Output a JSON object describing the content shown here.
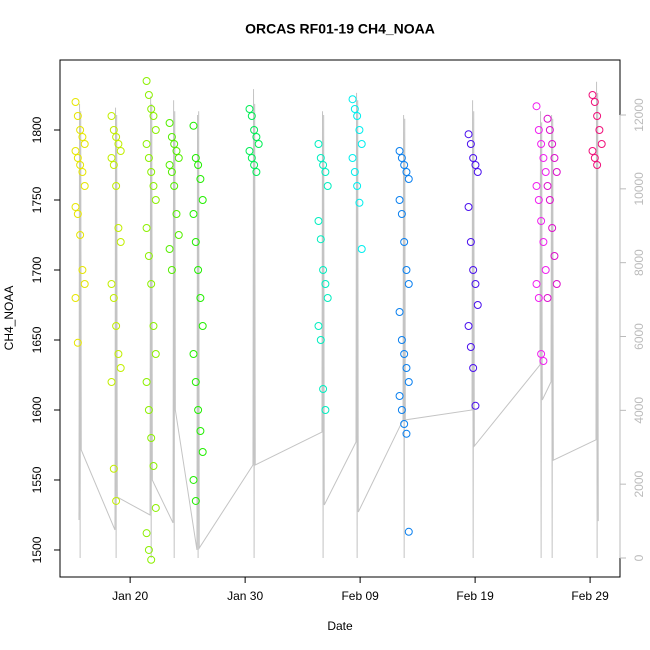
{
  "chart_data": {
    "type": "scatter",
    "title": "ORCAS RF01-19 CH4_NOAA",
    "x_label": "Date",
    "y_label": "CH4_NOAA",
    "xlim": [
      13.9,
      62.6
    ],
    "xticks": [
      {
        "value": 20,
        "label": "Jan 20"
      },
      {
        "value": 30,
        "label": "Jan 30"
      },
      {
        "value": 40,
        "label": "Feb 09"
      },
      {
        "value": 50,
        "label": "Feb 19"
      },
      {
        "value": 60,
        "label": "Feb 29"
      }
    ],
    "ylim": [
      1480.7,
      1850
    ],
    "yticks": [
      1500,
      1550,
      1600,
      1650,
      1700,
      1750,
      1800
    ],
    "y2lim": [
      -515,
      13490
    ],
    "y2ticks": [
      0,
      2000,
      4000,
      6000,
      8000,
      10000,
      12000
    ],
    "y2_color": "#bbbbbb",
    "series": [
      {
        "color": "#e6e600",
        "x": [
          15.25,
          15.45,
          15.65,
          15.85,
          16.05,
          15.25,
          15.45,
          15.65,
          15.85,
          16.05,
          15.25,
          15.45,
          15.65,
          15.85,
          16.05,
          15.25,
          15.45
        ],
        "values": [
          1820,
          1810,
          1800,
          1795,
          1790,
          1785,
          1780,
          1775,
          1770,
          1760,
          1745,
          1740,
          1725,
          1700,
          1690,
          1680,
          1648
        ]
      },
      {
        "color": "#c2ee00",
        "x": [
          18.38,
          18.58,
          18.78,
          18.98,
          19.18,
          18.38,
          18.58,
          18.78,
          18.98,
          19.18,
          18.38,
          18.58,
          18.78,
          18.98,
          19.18,
          18.38,
          18.58,
          18.78
        ],
        "values": [
          1810,
          1800,
          1795,
          1790,
          1785,
          1780,
          1775,
          1760,
          1730,
          1720,
          1690,
          1680,
          1660,
          1640,
          1630,
          1620,
          1558,
          1535
        ]
      },
      {
        "color": "#8cf000",
        "x": [
          21.43,
          21.63,
          21.83,
          22.03,
          22.23,
          21.43,
          21.63,
          21.83,
          22.03,
          22.23,
          21.43,
          21.63,
          21.83,
          22.03,
          22.23,
          21.43,
          21.63,
          21.83,
          22.03,
          22.23,
          21.43,
          21.63,
          21.83
        ],
        "values": [
          1835,
          1825,
          1815,
          1810,
          1800,
          1790,
          1780,
          1770,
          1760,
          1750,
          1730,
          1710,
          1690,
          1660,
          1640,
          1620,
          1600,
          1580,
          1560,
          1530,
          1512,
          1500,
          1493
        ]
      },
      {
        "color": "#55ee00",
        "x": [
          23.43,
          23.63,
          23.83,
          24.03,
          24.23,
          23.43,
          23.63,
          23.83,
          24.03,
          24.23,
          23.43,
          23.63
        ],
        "values": [
          1805,
          1795,
          1790,
          1785,
          1780,
          1775,
          1770,
          1760,
          1740,
          1725,
          1715,
          1700
        ]
      },
      {
        "color": "#22ee00",
        "x": [
          25.51,
          25.71,
          25.91,
          26.11,
          26.31,
          25.51,
          25.71,
          25.91,
          26.11,
          26.31,
          25.51,
          25.71,
          25.91,
          26.11,
          26.31,
          25.51,
          25.71
        ],
        "values": [
          1803,
          1780,
          1775,
          1765,
          1750,
          1740,
          1720,
          1700,
          1680,
          1660,
          1640,
          1620,
          1600,
          1585,
          1570,
          1550,
          1535
        ]
      },
      {
        "color": "#00ee55",
        "x": [
          30.38,
          30.58,
          30.78,
          30.98,
          31.18,
          30.38,
          30.58,
          30.78,
          30.98
        ],
        "values": [
          1815,
          1810,
          1800,
          1795,
          1790,
          1785,
          1780,
          1775,
          1770
        ]
      },
      {
        "color": "#00eec0",
        "x": [
          36.38,
          36.58,
          36.78,
          36.98,
          37.18,
          36.38,
          36.58,
          36.78,
          36.98,
          37.18,
          36.38,
          36.58,
          36.78,
          36.98
        ],
        "values": [
          1790,
          1780,
          1775,
          1770,
          1760,
          1735,
          1722,
          1700,
          1690,
          1680,
          1660,
          1650,
          1615,
          1600
        ]
      },
      {
        "color": "#00eeee",
        "x": [
          39.34,
          39.54,
          39.74,
          39.94,
          40.14,
          39.34,
          39.54,
          39.74,
          39.94,
          40.14
        ],
        "values": [
          1822,
          1815,
          1810,
          1800,
          1790,
          1780,
          1770,
          1760,
          1748,
          1715
        ]
      },
      {
        "color": "#0a80f0",
        "x": [
          43.43,
          43.63,
          43.83,
          44.03,
          44.23,
          43.43,
          43.63,
          43.83,
          44.03,
          44.23,
          43.43,
          43.63,
          43.83,
          44.03,
          44.23,
          43.43,
          43.63,
          43.83,
          44.03,
          44.23
        ],
        "values": [
          1785,
          1780,
          1775,
          1770,
          1765,
          1750,
          1740,
          1720,
          1700,
          1690,
          1670,
          1650,
          1640,
          1630,
          1620,
          1610,
          1600,
          1590,
          1583,
          1513
        ]
      },
      {
        "color": "#4a10ee",
        "x": [
          49.43,
          49.63,
          49.83,
          50.03,
          50.23,
          49.43,
          49.63,
          49.83,
          50.03,
          50.23,
          49.43,
          49.63,
          49.83,
          50.03
        ],
        "values": [
          1797,
          1790,
          1780,
          1775,
          1770,
          1745,
          1720,
          1700,
          1690,
          1675,
          1660,
          1645,
          1630,
          1603
        ]
      },
      {
        "color": "#f020f0",
        "x": [
          55.34,
          55.54,
          55.74,
          55.94,
          56.14,
          55.34,
          55.54,
          55.74,
          55.94,
          56.14,
          55.34,
          55.54,
          55.74,
          55.94
        ],
        "values": [
          1817,
          1800,
          1790,
          1780,
          1770,
          1760,
          1750,
          1735,
          1720,
          1700,
          1690,
          1680,
          1640,
          1635
        ]
      },
      {
        "color": "#dd10cc",
        "x": [
          56.3,
          56.5,
          56.7,
          56.9,
          57.1,
          56.3,
          56.5,
          56.7,
          56.9,
          57.1,
          56.3
        ],
        "values": [
          1808,
          1800,
          1790,
          1780,
          1770,
          1760,
          1750,
          1730,
          1710,
          1690,
          1680
        ]
      },
      {
        "color": "#f0107a",
        "x": [
          60.21,
          60.41,
          60.61,
          60.81,
          61.01,
          60.21,
          60.41,
          60.61
        ],
        "values": [
          1825,
          1820,
          1810,
          1800,
          1790,
          1785,
          1780,
          1775
        ]
      },
      {
        "type": "line",
        "axis": "y2",
        "color": "#c4c4c4",
        "x": [
          15.55,
          15.6,
          15.65,
          15.7,
          15.75,
          18.68,
          18.73,
          18.78,
          18.83,
          18.88,
          21.73,
          21.78,
          21.83,
          21.88,
          21.93,
          23.73,
          23.78,
          23.83,
          23.88,
          23.93,
          25.81,
          25.86,
          25.91,
          25.96,
          26.01,
          30.68,
          30.73,
          30.78,
          30.83,
          30.88,
          36.68,
          36.73,
          36.78,
          36.83,
          36.88,
          39.64,
          39.69,
          39.74,
          39.79,
          39.84,
          43.73,
          43.78,
          43.83,
          43.88,
          43.93,
          49.73,
          49.78,
          49.83,
          49.88,
          49.93,
          55.64,
          55.69,
          55.74,
          55.79,
          55.84,
          56.6,
          56.65,
          56.7,
          56.75,
          56.8,
          60.51,
          60.56,
          60.61,
          60.66,
          60.71
        ],
        "values": [
          1030,
          12300,
          0,
          12100,
          2926,
          760,
          12200,
          0,
          12000,
          1650,
          1165,
          12500,
          0,
          12300,
          2110,
          950,
          12400,
          0,
          12100,
          4010,
          220,
          12000,
          0,
          12100,
          270,
          2520,
          12700,
          0,
          12300,
          2520,
          3410,
          12100,
          0,
          12000,
          1435,
          3140,
          12600,
          0,
          12400,
          1245,
          3740,
          12000,
          0,
          11900,
          3740,
          4010,
          12400,
          0,
          12100,
          3030,
          5230,
          12100,
          0,
          11800,
          4280,
          4770,
          12000,
          0,
          11900,
          2650,
          3200,
          12900,
          0,
          12600,
          1000
        ]
      }
    ]
  }
}
